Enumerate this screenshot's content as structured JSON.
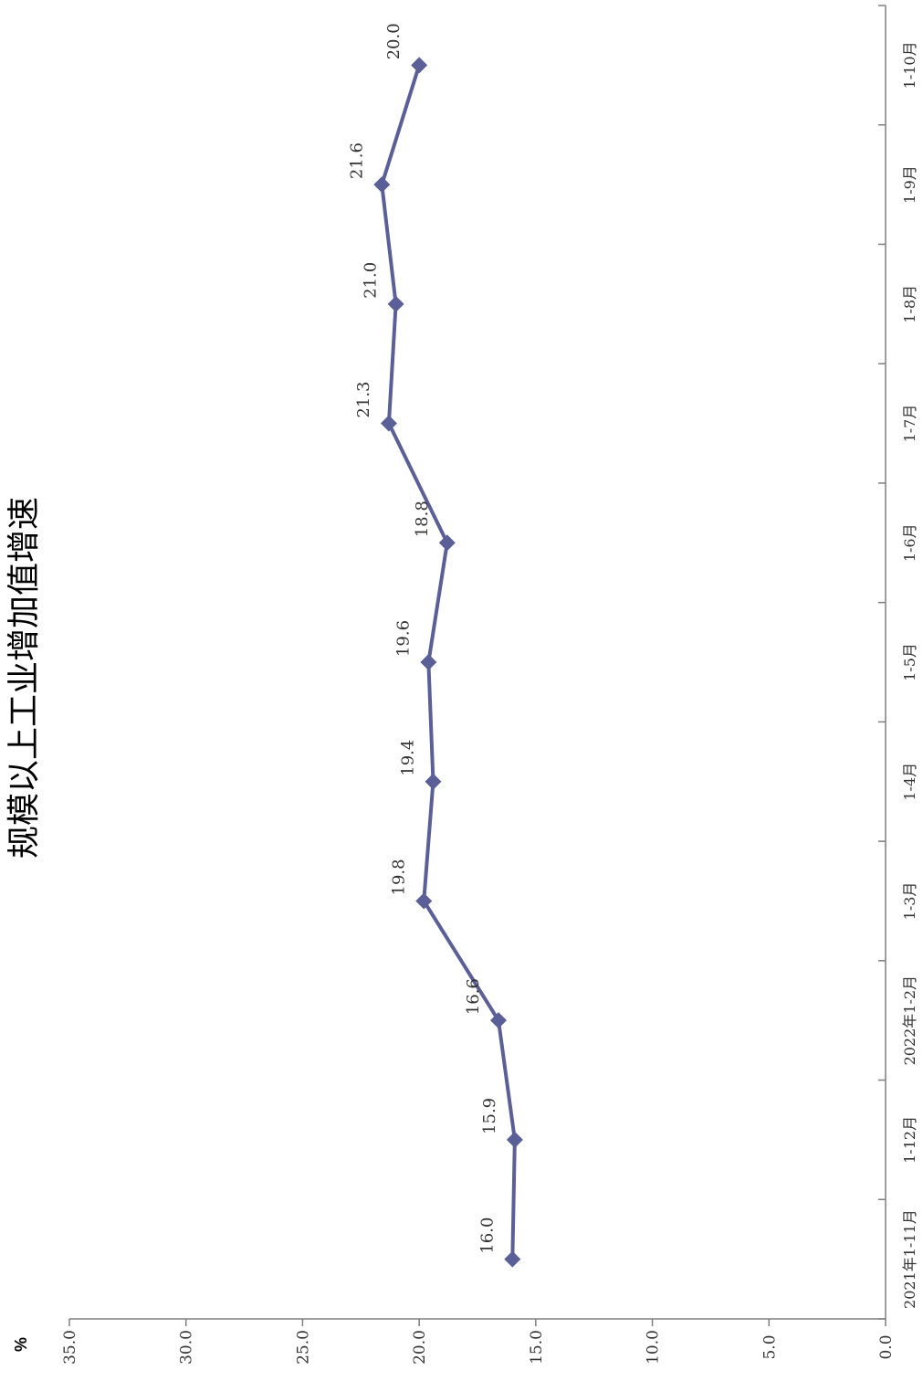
{
  "chart_data": {
    "type": "line",
    "orientation": "rotated-90-counterclockwise",
    "title": "规模以上工业增加值增速",
    "ylabel": "%",
    "xlabel": "",
    "categories": [
      "2021年1-11月",
      "1-12月",
      "2022年1-2月",
      "1-3月",
      "1-4月",
      "1-5月",
      "1-6月",
      "1-7月",
      "1-8月",
      "1-9月",
      "1-10月"
    ],
    "series": [
      {
        "name": "",
        "values": [
          16.0,
          15.9,
          16.6,
          19.8,
          19.4,
          19.6,
          18.8,
          21.3,
          21.0,
          21.6,
          20.0
        ]
      }
    ],
    "data_labels": [
      "16.0",
      "15.9",
      "16.6",
      "19.8",
      "19.4",
      "19.6",
      "18.8",
      "21.3",
      "21.0",
      "21.6",
      "20.0"
    ],
    "ylim": [
      0,
      35
    ],
    "yticks": [
      "0.0",
      "5.0",
      "10.0",
      "15.0",
      "20.0",
      "25.0",
      "30.0",
      "35.0"
    ],
    "grid": false,
    "legend": "none",
    "line_color": "#5b5f97",
    "marker": "diamond"
  }
}
